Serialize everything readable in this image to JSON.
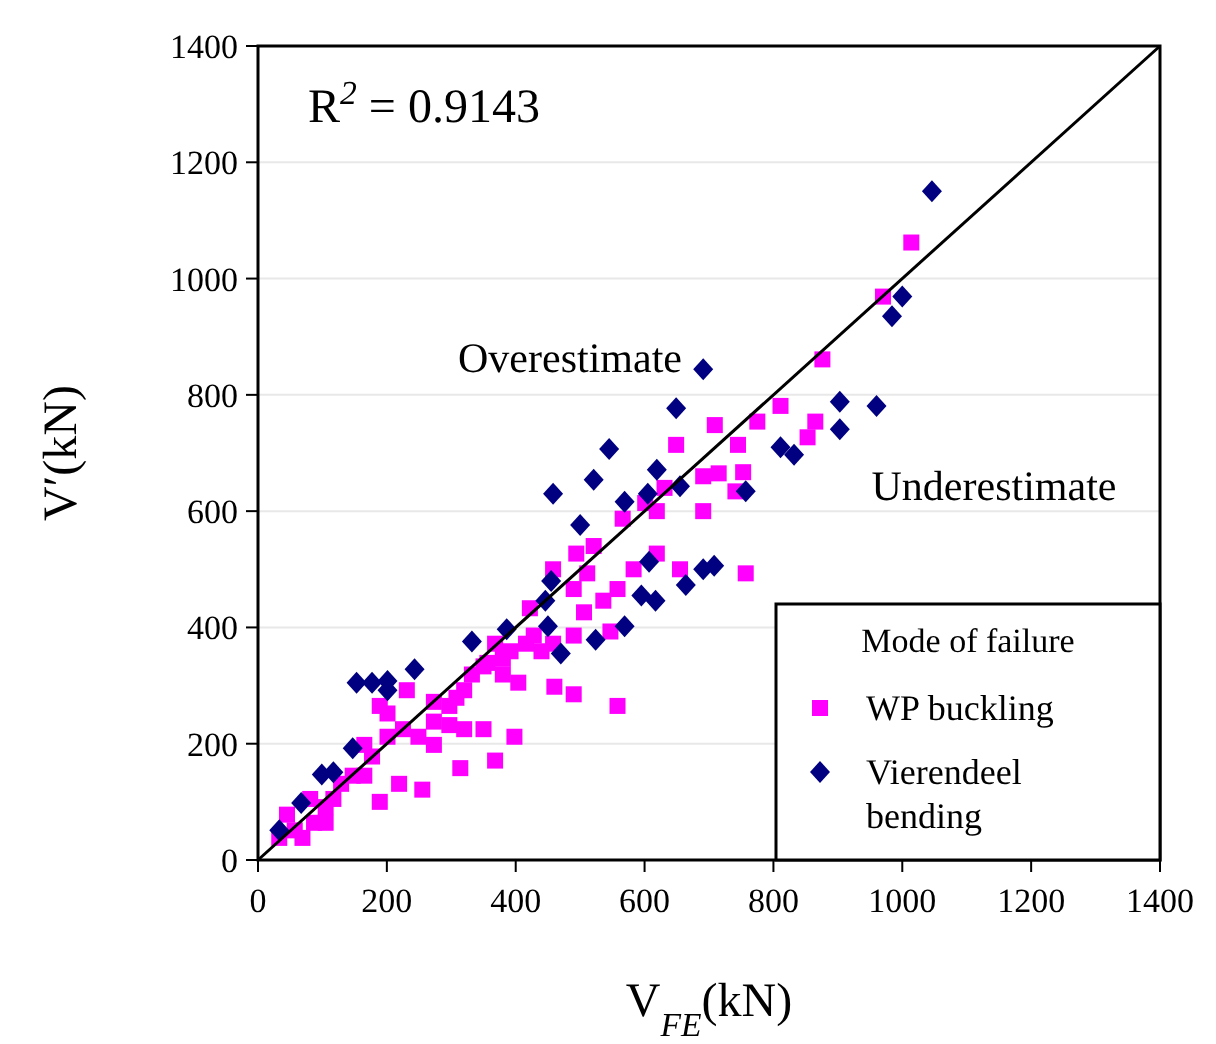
{
  "chart_data": {
    "type": "scatter",
    "xlabel": "V$_{FE}$(kN)",
    "ylabel": "V′(kN)",
    "legend_title": "Mode of failure",
    "legend": "bottom right",
    "grid": "y",
    "xlim": [
      0,
      1400
    ],
    "xticks": [
      0,
      200,
      400,
      600,
      800,
      1000,
      1200,
      1400
    ],
    "ylim": [
      0,
      1400
    ],
    "yticks": [
      0,
      200,
      400,
      600,
      800,
      1000,
      1200,
      1400
    ],
    "annotations": [
      "R$^{2}$ = 0.9143",
      "Overestimate",
      "Underestimate"
    ],
    "series": [
      {
        "name": "WP buckling",
        "color": "#ff00ff",
        "marker": "square",
        "x": [
          1014,
          970,
          876,
          811,
          775,
          709,
          745,
          865,
          853,
          649,
          741,
          753,
          691,
          715,
          691,
          631,
          601,
          566,
          619,
          757,
          655,
          619,
          583,
          558,
          536,
          494,
          521,
          511,
          458,
          490,
          506,
          490,
          547,
          558,
          490,
          460,
          458,
          428,
          422,
          416,
          392,
          368,
          356,
          380,
          404,
          350,
          398,
          368,
          314,
          255,
          219,
          189,
          297,
          273,
          249,
          225,
          201,
          189,
          231,
          165,
          177,
          147,
          117,
          105,
          87,
          69,
          45,
          129,
          320,
          332,
          273,
          308,
          350,
          380,
          440,
          273,
          297,
          105,
          57,
          33,
          81,
          201,
          165,
          320
        ],
        "values": [
          1062,
          969,
          861,
          781,
          754,
          748,
          714,
          754,
          727,
          714,
          634,
          667,
          660,
          665,
          600,
          640,
          614,
          587,
          600,
          493,
          500,
          527,
          500,
          466,
          446,
          527,
          540,
          493,
          500,
          466,
          426,
          386,
          393,
          265,
          285,
          298,
          372,
          386,
          433,
          372,
          359,
          372,
          339,
          319,
          305,
          225,
          212,
          171,
          158,
          121,
          131,
          100,
          265,
          238,
          212,
          225,
          252,
          265,
          292,
          198,
          178,
          145,
          105,
          64,
          64,
          38,
          78,
          131,
          225,
          319,
          272,
          279,
          333,
          346,
          359,
          198,
          232,
          91,
          51,
          38,
          105,
          212,
          145,
          292
        ]
      },
      {
        "name": "Vierendeel bending",
        "color": "#000080",
        "marker": "diamond",
        "x": [
          1046,
          1000,
          984,
          960,
          903,
          903,
          811,
          832,
          691,
          649,
          757,
          619,
          545,
          521,
          458,
          569,
          500,
          605,
          655,
          607,
          595,
          617,
          664,
          691,
          708,
          569,
          524,
          470,
          450,
          455,
          446,
          386,
          332,
          243,
          201,
          153,
          177,
          201,
          147,
          99,
          117,
          67,
          33
        ],
        "values": [
          1150,
          969,
          935,
          781,
          788,
          741,
          710,
          697,
          844,
          777,
          634,
          671,
          707,
          654,
          630,
          616,
          576,
          630,
          643,
          513,
          455,
          446,
          473,
          500,
          506,
          402,
          379,
          355,
          402,
          480,
          446,
          397,
          376,
          328,
          308,
          305,
          305,
          292,
          192,
          147,
          151,
          98,
          51
        ]
      },
      {
        "type": "line",
        "color": "#000000",
        "marker": "none",
        "line_style": "solid",
        "x": [
          0,
          1400
        ],
        "values": [
          0,
          1400
        ]
      }
    ]
  }
}
